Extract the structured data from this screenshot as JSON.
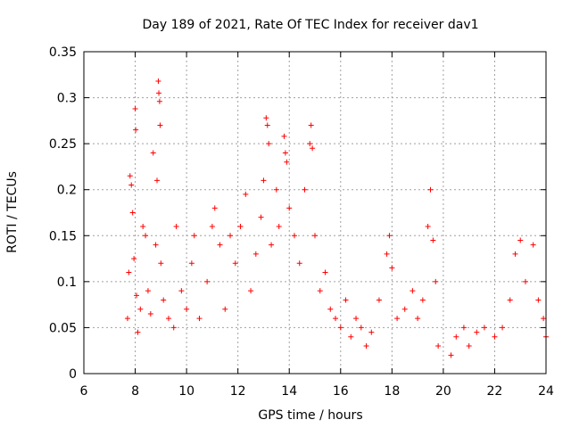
{
  "chart_data": {
    "type": "scatter",
    "title": "Day 189 of 2021, Rate Of TEC Index for receiver dav1",
    "xlabel": "GPS time / hours",
    "ylabel": "ROTI / TECUs",
    "xlim": [
      6,
      24
    ],
    "ylim": [
      0,
      0.35
    ],
    "grid": true,
    "marker": "plus",
    "marker_color": "#ff0000",
    "x_ticks": [
      6,
      8,
      10,
      12,
      14,
      16,
      18,
      20,
      22,
      24
    ],
    "x_tick_labels": [
      "6",
      "8",
      "10",
      "12",
      "14",
      "16",
      "18",
      "20",
      "22",
      "24"
    ],
    "y_ticks": [
      0,
      0.05,
      0.1,
      0.15,
      0.2,
      0.25,
      0.3,
      0.35
    ],
    "y_tick_labels": [
      "0",
      "0.05",
      "0.1",
      "0.15",
      "0.2",
      "0.25",
      "0.3",
      "0.35"
    ],
    "series": [
      {
        "points": [
          [
            7.7,
            0.06
          ],
          [
            7.75,
            0.11
          ],
          [
            7.8,
            0.215
          ],
          [
            7.85,
            0.205
          ],
          [
            7.9,
            0.175
          ],
          [
            7.95,
            0.125
          ],
          [
            8.0,
            0.288
          ],
          [
            8.02,
            0.265
          ],
          [
            8.05,
            0.085
          ],
          [
            8.1,
            0.045
          ],
          [
            8.2,
            0.07
          ],
          [
            8.3,
            0.16
          ],
          [
            8.4,
            0.15
          ],
          [
            8.5,
            0.09
          ],
          [
            8.6,
            0.065
          ],
          [
            8.7,
            0.24
          ],
          [
            8.8,
            0.14
          ],
          [
            8.85,
            0.21
          ],
          [
            8.9,
            0.318
          ],
          [
            8.92,
            0.305
          ],
          [
            8.95,
            0.296
          ],
          [
            8.97,
            0.27
          ],
          [
            9.0,
            0.12
          ],
          [
            9.1,
            0.08
          ],
          [
            9.3,
            0.06
          ],
          [
            9.5,
            0.05
          ],
          [
            9.6,
            0.16
          ],
          [
            9.8,
            0.09
          ],
          [
            10.0,
            0.07
          ],
          [
            10.2,
            0.12
          ],
          [
            10.3,
            0.15
          ],
          [
            10.5,
            0.06
          ],
          [
            10.8,
            0.1
          ],
          [
            11.0,
            0.16
          ],
          [
            11.1,
            0.18
          ],
          [
            11.3,
            0.14
          ],
          [
            11.5,
            0.07
          ],
          [
            11.7,
            0.15
          ],
          [
            11.9,
            0.12
          ],
          [
            12.1,
            0.16
          ],
          [
            12.3,
            0.195
          ],
          [
            12.5,
            0.09
          ],
          [
            12.7,
            0.13
          ],
          [
            12.9,
            0.17
          ],
          [
            13.0,
            0.21
          ],
          [
            13.1,
            0.278
          ],
          [
            13.15,
            0.27
          ],
          [
            13.2,
            0.25
          ],
          [
            13.3,
            0.14
          ],
          [
            13.5,
            0.2
          ],
          [
            13.6,
            0.16
          ],
          [
            13.8,
            0.258
          ],
          [
            13.85,
            0.24
          ],
          [
            13.9,
            0.23
          ],
          [
            14.0,
            0.18
          ],
          [
            14.2,
            0.15
          ],
          [
            14.4,
            0.12
          ],
          [
            14.6,
            0.2
          ],
          [
            14.8,
            0.25
          ],
          [
            14.85,
            0.27
          ],
          [
            14.9,
            0.245
          ],
          [
            15.0,
            0.15
          ],
          [
            15.2,
            0.09
          ],
          [
            15.4,
            0.11
          ],
          [
            15.6,
            0.07
          ],
          [
            15.8,
            0.06
          ],
          [
            16.0,
            0.05
          ],
          [
            16.2,
            0.08
          ],
          [
            16.4,
            0.04
          ],
          [
            16.6,
            0.06
          ],
          [
            16.8,
            0.05
          ],
          [
            17.0,
            0.03
          ],
          [
            17.2,
            0.045
          ],
          [
            17.5,
            0.08
          ],
          [
            17.8,
            0.13
          ],
          [
            17.9,
            0.15
          ],
          [
            18.0,
            0.115
          ],
          [
            18.2,
            0.06
          ],
          [
            18.5,
            0.07
          ],
          [
            18.8,
            0.09
          ],
          [
            19.0,
            0.06
          ],
          [
            19.2,
            0.08
          ],
          [
            19.4,
            0.16
          ],
          [
            19.5,
            0.2
          ],
          [
            19.6,
            0.145
          ],
          [
            19.7,
            0.1
          ],
          [
            19.8,
            0.03
          ],
          [
            20.3,
            0.02
          ],
          [
            20.5,
            0.04
          ],
          [
            20.8,
            0.05
          ],
          [
            21.0,
            0.03
          ],
          [
            21.3,
            0.045
          ],
          [
            21.6,
            0.05
          ],
          [
            22.0,
            0.04
          ],
          [
            22.3,
            0.05
          ],
          [
            22.6,
            0.08
          ],
          [
            22.8,
            0.13
          ],
          [
            23.0,
            0.145
          ],
          [
            23.2,
            0.1
          ],
          [
            23.5,
            0.14
          ],
          [
            23.7,
            0.08
          ],
          [
            23.9,
            0.06
          ],
          [
            24.0,
            0.04
          ]
        ]
      }
    ]
  }
}
